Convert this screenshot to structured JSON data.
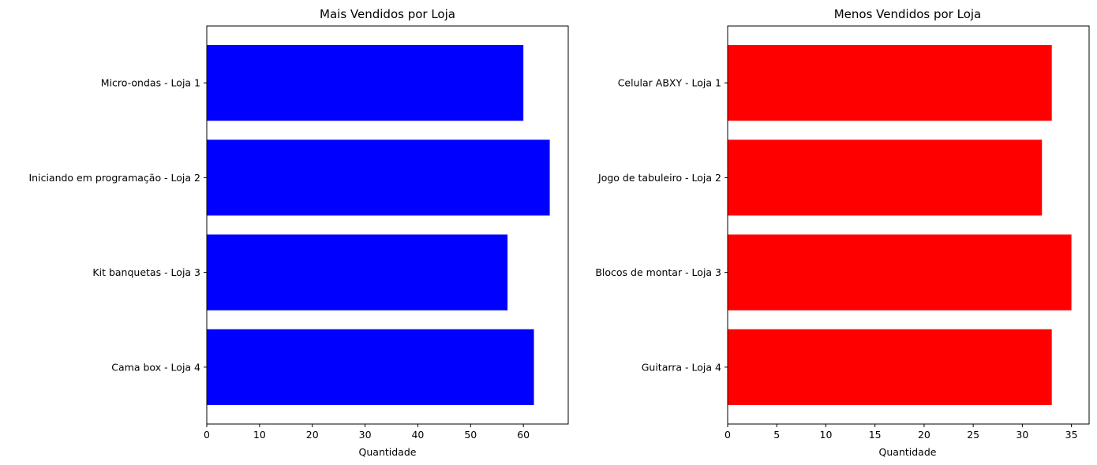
{
  "chart_data": [
    {
      "type": "bar",
      "orientation": "horizontal",
      "title": "Mais Vendidos por Loja",
      "xlabel": "Quantidade",
      "ylabel": "",
      "categories": [
        "Micro-ondas - Loja 1",
        "Iniciando em programação - Loja 2",
        "Kit banquetas - Loja 3",
        "Cama box - Loja 4"
      ],
      "values": [
        60,
        65,
        57,
        62
      ],
      "xlim": [
        0,
        68.5
      ],
      "xticks": [
        0,
        10,
        20,
        30,
        40,
        50,
        60
      ],
      "color": "#0000ff",
      "grid": false
    },
    {
      "type": "bar",
      "orientation": "horizontal",
      "title": "Menos Vendidos por Loja",
      "xlabel": "Quantidade",
      "ylabel": "",
      "categories": [
        "Celular ABXY - Loja 1",
        "Jogo de tabuleiro - Loja 2",
        "Blocos de montar - Loja 3",
        "Guitarra - Loja 4"
      ],
      "values": [
        33,
        32,
        35,
        33
      ],
      "xlim": [
        0,
        36.8
      ],
      "xticks": [
        0,
        5,
        10,
        15,
        20,
        25,
        30,
        35
      ],
      "color": "#ff0000",
      "grid": false
    }
  ]
}
